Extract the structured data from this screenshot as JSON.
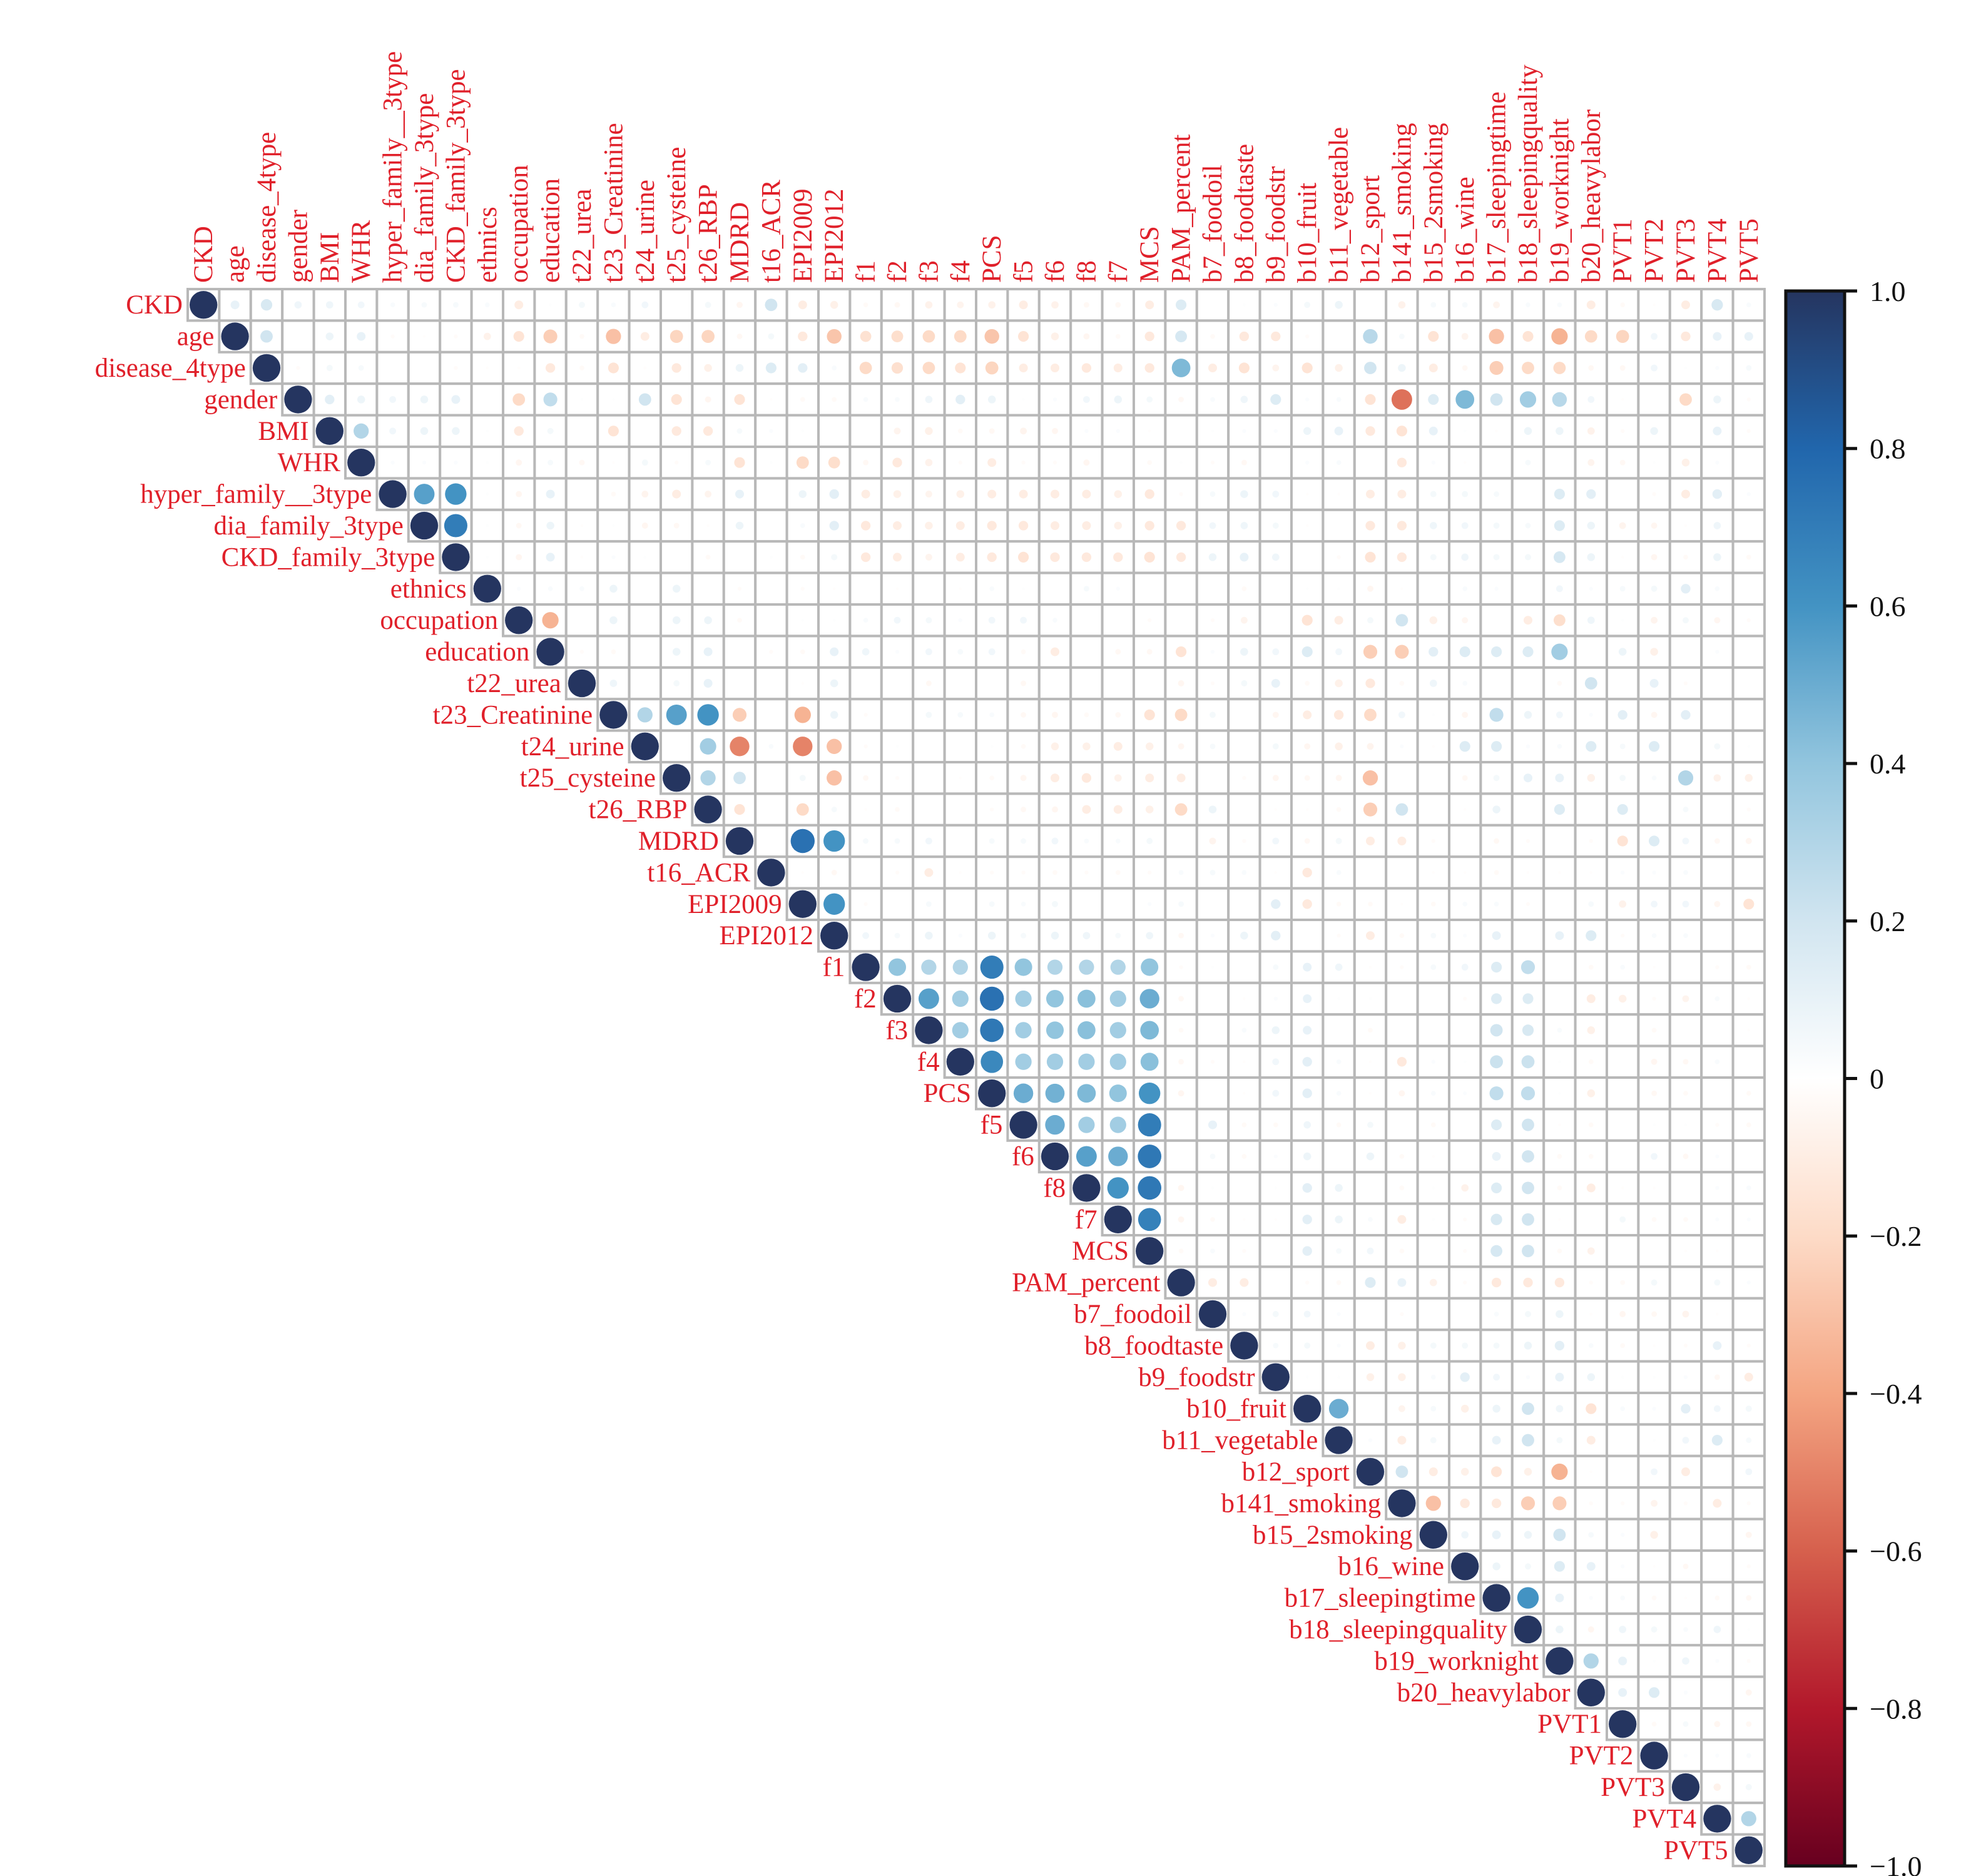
{
  "chart_data": {
    "type": "heatmap",
    "subtype": "correlation-circle-upper-triangle",
    "variables": [
      "CKD",
      "age",
      "disease_4type",
      "gender",
      "BMI",
      "WHR",
      "hyper_family__3type",
      "dia_family_3type",
      "CKD_family_3type",
      "ethnics",
      "occupation",
      "education",
      "t22_urea",
      "t23_Creatinine",
      "t24_urine",
      "t25_cysteine",
      "t26_RBP",
      "MDRD",
      "t16_ACR",
      "EPI2009",
      "EPI2012",
      "f1",
      "f2",
      "f3",
      "f4",
      "PCS",
      "f5",
      "f6",
      "f8",
      "f7",
      "MCS",
      "PAM_percent",
      "b7_foodoil",
      "b8_foodtaste",
      "b9_foodstr",
      "b10_fruit",
      "b11_vegetable",
      "b12_sport",
      "b141_smoking",
      "b15_2smoking",
      "b16_wine",
      "b17_sleepingtime",
      "b18_sleepingquality",
      "b19_worknight",
      "b20_heavylabor",
      "PVT1",
      "PVT2",
      "PVT3",
      "PVT4",
      "PVT5"
    ],
    "upper_triangle_note": "row i lists correlations with columns i+1..49; diagonal = 1",
    "upper_triangle": [
      [
        0.1,
        0.17,
        0.07,
        0.07,
        0.06,
        0.03,
        0.04,
        0.04,
        0.03,
        -0.1,
        0.01,
        0.05,
        0.03,
        0.06,
        0,
        0.05,
        -0.05,
        0.2,
        -0.1,
        -0.08,
        -0.03,
        -0.04,
        -0.07,
        -0.06,
        -0.07,
        -0.1,
        -0.07,
        -0.04,
        -0.04,
        -0.1,
        0.15,
        0,
        0.01,
        0.02,
        0.05,
        0.08,
        0,
        -0.07,
        0.04,
        0.04,
        -0.06,
        0.03,
        0.03,
        -0.1,
        -0.03,
        -0.01,
        -0.1,
        0.17,
        0.03
      ],
      [
        0.2,
        0,
        0.08,
        0.1,
        -0.02,
        -0.01,
        -0.02,
        -0.07,
        -0.15,
        -0.25,
        -0.03,
        -0.3,
        -0.1,
        -0.22,
        -0.22,
        -0.04,
        0.05,
        -0.12,
        -0.28,
        -0.16,
        -0.18,
        -0.2,
        -0.2,
        -0.28,
        -0.15,
        -0.08,
        -0.05,
        -0.03,
        -0.12,
        0.18,
        -0.03,
        -0.12,
        -0.12,
        -0.02,
        0,
        0.28,
        0.04,
        -0.15,
        -0.06,
        -0.3,
        -0.15,
        -0.35,
        -0.2,
        -0.22,
        0.06,
        -0.12,
        0.1,
        0.1
      ],
      [
        -0.02,
        0.05,
        0.04,
        0,
        0,
        -0.02,
        -0.01,
        -0.01,
        -0.12,
        -0.03,
        -0.15,
        -0.01,
        -0.12,
        -0.08,
        0.08,
        0.15,
        0.12,
        0.03,
        -0.2,
        -0.17,
        -0.2,
        -0.15,
        -0.22,
        -0.1,
        -0.1,
        -0.12,
        -0.1,
        -0.12,
        0.45,
        -0.1,
        -0.15,
        -0.06,
        -0.15,
        -0.08,
        0.2,
        0.08,
        -0.1,
        -0.04,
        -0.25,
        -0.2,
        -0.2,
        -0.04,
        -0.04,
        0.06,
        0.01,
        0.02,
        0.04
      ],
      [
        0.12,
        0.08,
        0.06,
        0.08,
        0.1,
        0,
        -0.2,
        0.25,
        0.01,
        0.01,
        0.2,
        -0.15,
        -0.05,
        -0.15,
        -0.01,
        -0.03,
        -0.03,
        0.03,
        0.03,
        0.07,
        0.12,
        0.08,
        0.01,
        0.02,
        0.06,
        0.08,
        0.05,
        -0.04,
        0.03,
        0.07,
        0.15,
        0.02,
        0.03,
        -0.15,
        -0.55,
        0.15,
        0.45,
        0.2,
        0.35,
        0.28,
        0.06,
        -0.01,
        0,
        -0.2,
        0.08,
        -0.02
      ],
      [
        0.3,
        0.06,
        0.08,
        0.08,
        0.01,
        -0.12,
        0.05,
        0,
        -0.15,
        0,
        -0.12,
        -0.12,
        0.04,
        0.02,
        0.01,
        0,
        0,
        -0.06,
        -0.08,
        -0.03,
        -0.04,
        -0.06,
        -0.05,
        0.02,
        0.02,
        -0.01,
        0,
        0.01,
        0.02,
        0.02,
        0.08,
        0.1,
        -0.12,
        -0.15,
        0.1,
        0.01,
        -0.01,
        0.08,
        0.08,
        -0.07,
        -0.02,
        0.08,
        0,
        0.1,
        -0.02
      ],
      [
        0.02,
        0.02,
        0.02,
        0.01,
        -0.05,
        0.04,
        -0.04,
        -0.01,
        0.05,
        -0.02,
        0.04,
        -0.15,
        0.01,
        -0.2,
        -0.18,
        -0.04,
        -0.12,
        -0.07,
        -0.02,
        -0.1,
        -0.02,
        -0.02,
        -0.05,
        0,
        -0.03,
        0.01,
        -0.02,
        -0.04,
        0,
        0.02,
        0.03,
        0,
        -0.12,
        0.02,
        -0.01,
        0,
        0.04,
        0,
        -0.06,
        -0.04,
        0.01,
        -0.08,
        0.02,
        0
      ],
      [
        0.55,
        0.6,
        0.01,
        -0.05,
        0.1,
        0,
        -0.03,
        -0.06,
        -0.1,
        -0.06,
        0.1,
        0,
        0.08,
        0.12,
        -0.1,
        -0.08,
        -0.06,
        -0.08,
        -0.1,
        -0.1,
        -0.1,
        -0.1,
        -0.08,
        -0.12,
        -0.02,
        0.04,
        0.08,
        0.06,
        -0.01,
        -0.01,
        -0.1,
        -0.1,
        0.05,
        0.05,
        0.04,
        0,
        0.15,
        0.12,
        0,
        -0.02,
        -0.1,
        0.12,
        0.02
      ],
      [
        0.7,
        0.01,
        -0.04,
        0.08,
        -0.01,
        0.01,
        -0.05,
        -0.04,
        -0.01,
        0.08,
        0,
        0.03,
        0.12,
        -0.12,
        -0.1,
        -0.08,
        -0.1,
        -0.12,
        -0.12,
        -0.1,
        -0.1,
        -0.08,
        -0.12,
        -0.12,
        0.06,
        0.07,
        0.05,
        -0.01,
        0,
        -0.12,
        -0.12,
        0.07,
        0.06,
        0.05,
        0.04,
        0.15,
        0.08,
        -0.06,
        -0.05,
        -0.01,
        0.07,
        0
      ],
      [
        0.01,
        -0.05,
        0.1,
        -0.01,
        0.02,
        0.01,
        0,
        -0.03,
        0,
        0.01,
        -0.03,
        0.05,
        -0.12,
        -0.1,
        -0.06,
        -0.1,
        -0.12,
        -0.15,
        -0.12,
        -0.12,
        -0.12,
        -0.15,
        -0.12,
        0.08,
        0.1,
        0.07,
        0,
        -0.02,
        -0.15,
        -0.12,
        0.05,
        0.07,
        0.05,
        0.05,
        0.18,
        0.08,
        -0.01,
        -0.05,
        -0.03,
        0.08,
        -0.03
      ],
      [
        0.02,
        0.03,
        0.03,
        0.08,
        0,
        0.08,
        0,
        -0.02,
        0,
        -0.02,
        -0.01,
        0,
        -0.01,
        0,
        -0.01,
        0.03,
        0.01,
        0,
        0.04,
        0.02,
        0,
        0,
        0,
        -0.03,
        0,
        0.01,
        0.01,
        -0.05,
        -0.01,
        0,
        0.03,
        0.02,
        0,
        0.06,
        0.02,
        0.04,
        0.05,
        0.12,
        0.03,
        0
      ],
      [
        -0.35,
        0,
        0.08,
        0,
        0.08,
        0.08,
        -0.03,
        0,
        0.01,
        0.01,
        0.03,
        0.06,
        0.05,
        0.02,
        0.06,
        0.06,
        0.03,
        0,
        0,
        -0.02,
        0,
        -0.02,
        -0.06,
        0,
        -0.15,
        -0.1,
        0.05,
        0.2,
        -0.08,
        -0.05,
        0,
        -0.1,
        -0.18,
        0.07,
        0.01,
        -0.06,
        0.05,
        -0.05,
        -0.02
      ],
      [
        -0.02,
        -0.03,
        0,
        0.08,
        0.1,
        0,
        -0.02,
        -0.03,
        0.1,
        0.07,
        0.02,
        0.06,
        0.04,
        0.06,
        -0.03,
        -0.1,
        0,
        -0.04,
        -0.04,
        -0.15,
        0.02,
        0.08,
        0.06,
        0.15,
        0.06,
        -0.25,
        -0.25,
        0.12,
        0.15,
        0.15,
        0.15,
        0.35,
        0,
        0.08,
        -0.08,
        0,
        0.02,
        0
      ],
      [
        0.07,
        0,
        0.05,
        0.1,
        0,
        0,
        -0.01,
        0.08,
        0,
        0,
        -0.04,
        0,
        0,
        -0.04,
        0,
        0,
        0,
        0,
        -0.05,
        -0.02,
        0.05,
        0.1,
        -0.03,
        -0.08,
        -0.12,
        -0.03,
        0.07,
        0.03,
        0,
        0,
        -0.03,
        0.2,
        0,
        0.1,
        -0.02,
        0,
        0
      ],
      [
        0.3,
        0.55,
        0.6,
        -0.25,
        0,
        -0.35,
        0.08,
        -0.02,
        0,
        0.05,
        0.04,
        0.03,
        -0.04,
        -0.05,
        -0.03,
        -0.04,
        -0.15,
        -0.2,
        0.05,
        0,
        -0.05,
        -0.1,
        -0.12,
        -0.2,
        0.06,
        0.01,
        -0.05,
        0.25,
        0.08,
        0.06,
        0.02,
        0.12,
        -0.05,
        0.12,
        0,
        0
      ],
      [
        0,
        0.35,
        -0.5,
        0.03,
        -0.5,
        -0.3,
        -0.02,
        0.01,
        0,
        0,
        0.01,
        -0.03,
        -0.08,
        -0.08,
        -0.1,
        -0.08,
        -0.05,
        0.04,
        0,
        0.05,
        -0.05,
        -0.08,
        -0.06,
        0.02,
        -0.01,
        0.15,
        0.15,
        0.02,
        0.03,
        0.15,
        0.04,
        0.15,
        0,
        0.05,
        0.01
      ],
      [
        0.3,
        0.2,
        0,
        0.05,
        -0.3,
        -0.04,
        -0.02,
        0,
        -0.01,
        -0.03,
        -0.05,
        -0.1,
        -0.12,
        -0.07,
        -0.1,
        -0.1,
        0,
        -0.02,
        -0.05,
        -0.04,
        -0.05,
        -0.3,
        0,
        0,
        -0.04,
        0.05,
        0.1,
        0.1,
        -0.08,
        0.05,
        0.03,
        0.3,
        -0.07,
        -0.08
      ],
      [
        -0.15,
        0,
        -0.2,
        0.04,
        -0.01,
        -0.03,
        0,
        0,
        -0.02,
        -0.04,
        -0.05,
        -0.1,
        -0.1,
        -0.08,
        -0.2,
        0.08,
        0,
        -0.01,
        -0.01,
        -0.03,
        -0.25,
        0.2,
        0,
        -0.01,
        0.08,
        0,
        0.15,
        0,
        0.15,
        0,
        0.04,
        0,
        -0.02
      ],
      [
        0,
        0.75,
        0.6,
        0.04,
        0.04,
        0.06,
        0,
        0.04,
        0.04,
        0.06,
        0.03,
        0.03,
        0.05,
        0,
        -0.06,
        -0.02,
        0.06,
        -0.04,
        0.05,
        -0.1,
        -0.1,
        -0.02,
        0,
        -0.04,
        -0.02,
        0,
        -0.02,
        -0.15,
        0.15,
        0.06,
        -0.04,
        -0.05
      ],
      [
        -0.01,
        -0.04,
        0,
        -0.02,
        -0.1,
        -0.01,
        -0.02,
        -0.02,
        -0.03,
        -0.02,
        -0.03,
        -0.02,
        0.03,
        0.04,
        0.03,
        -0.01,
        -0.12,
        0.03,
        0,
        0,
        -0.01,
        -0.01,
        -0.03,
        -0.01,
        -0.01,
        -0.01,
        0.02,
        0.02,
        0.03,
        0,
        0
      ],
      [
        0.6,
        -0.02,
        0,
        0.04,
        0,
        0.04,
        0.03,
        0.05,
        0,
        0,
        0.02,
        0.04,
        0,
        0,
        0.12,
        -0.12,
        -0.03,
        -0.03,
        -0.01,
        -0.03,
        0.03,
        0.03,
        -0.02,
        0,
        0.04,
        -0.07,
        0.06,
        0.06,
        -0.05,
        -0.15
      ],
      [
        0.06,
        0.04,
        0.08,
        0.02,
        0.08,
        0.04,
        0.08,
        0.07,
        0.04,
        0.07,
        -0.04,
        0.02,
        0.08,
        0.12,
        0,
        -0.02,
        -0.1,
        -0.03,
        0.04,
        0.02,
        0.1,
        0,
        0.1,
        0.15,
        -0.02,
        0.03,
        0.03,
        0,
        0
      ],
      [
        0.4,
        0.3,
        0.3,
        0.7,
        0.4,
        0.3,
        0.3,
        0.3,
        0.4,
        -0.02,
        0.01,
        0,
        0.04,
        0.1,
        0.07,
        -0.01,
        -0.02,
        0.04,
        0.06,
        0.15,
        0.25,
        0,
        -0.03,
        0.03,
        -0.01,
        0,
        -0.02,
        -0.03
      ],
      [
        0.55,
        0.35,
        0.75,
        0.35,
        0.4,
        0.42,
        0.35,
        0.5,
        -0.04,
        0,
        -0.01,
        0.02,
        0.1,
        0.01,
        0.01,
        0,
        0,
        -0.02,
        0.15,
        0.15,
        0,
        -0.1,
        -0.08,
        -0.02,
        -0.06,
        0.03,
        -0.01
      ],
      [
        0.35,
        0.72,
        0.35,
        0.4,
        0.42,
        0.35,
        0.45,
        -0.03,
        0,
        0.03,
        0.08,
        0.1,
        0,
        -0.03,
        0,
        0,
        0,
        0.2,
        0.17,
        0.03,
        -0.08,
        0,
        -0.03,
        0,
        0,
        -0.01
      ],
      [
        0.65,
        0.35,
        0.35,
        0.35,
        0.35,
        0.42,
        -0.04,
        -0.02,
        -0.01,
        0.06,
        0.12,
        0.03,
        -0.01,
        -0.12,
        0.02,
        0.01,
        0.22,
        0.22,
        0.01,
        -0.03,
        0,
        -0.05,
        -0.04,
        0.03,
        0
      ],
      [
        0.5,
        0.48,
        0.45,
        0.4,
        0.6,
        -0.05,
        0,
        -0.01,
        0.06,
        0.12,
        0.03,
        -0.01,
        -0.05,
        0.03,
        0.02,
        0.25,
        0.25,
        0.01,
        -0.08,
        0,
        -0.04,
        -0.03,
        0,
        -0.03
      ],
      [
        0.5,
        0.35,
        0.35,
        0.7,
        0,
        0.1,
        -0.03,
        -0.03,
        0.07,
        -0.03,
        0.05,
        0,
        -0.03,
        0,
        0.15,
        0.2,
        -0.01,
        -0.03,
        0,
        0.01,
        0.01,
        -0.02,
        -0.03
      ],
      [
        0.55,
        0.5,
        0.72,
        0,
        0.04,
        -0.03,
        0.02,
        0.08,
        0,
        0.08,
        -0.03,
        -0.01,
        0,
        0.1,
        0.2,
        -0.03,
        -0.03,
        0,
        0.06,
        -0.04,
        0.02,
        0
      ],
      [
        0.6,
        0.72,
        -0.05,
        0.01,
        0,
        0.01,
        0.12,
        0.08,
        0,
        -0.03,
        0.01,
        -0.07,
        0.15,
        0.2,
        -0.03,
        -0.1,
        -0.01,
        -0.01,
        0,
        0.02,
        0.03
      ],
      [
        0.68,
        -0.05,
        -0.03,
        -0.01,
        -0.01,
        0.12,
        0.08,
        0.03,
        -0.1,
        0.01,
        -0.02,
        0.17,
        0.2,
        -0.01,
        0,
        0.05,
        -0.03,
        -0.03,
        0.02,
        0.02
      ],
      [
        -0.03,
        0.03,
        -0.02,
        0,
        0.12,
        0.04,
        0.06,
        -0.03,
        0,
        -0.02,
        0.18,
        0.2,
        -0.03,
        -0.07,
        0,
        0,
        -0.01,
        -0.01,
        0
      ],
      [
        -0.1,
        -0.1,
        0,
        -0.02,
        -0.03,
        0.15,
        0.1,
        -0.07,
        -0.02,
        -0.12,
        -0.12,
        -0.12,
        -0.02,
        -0.03,
        0.05,
        0,
        0.05,
        0.02
      ],
      [
        0.02,
        0.05,
        0.06,
        0.02,
        0,
        -0.02,
        0,
        0,
        0.03,
        0.05,
        0.08,
        -0.01,
        -0.05,
        -0.04,
        -0.06,
        -0.01,
        0
      ],
      [
        0.04,
        0.05,
        0.02,
        -0.1,
        -0.08,
        0.05,
        0.05,
        0.05,
        0.08,
        0.12,
        0.03,
        -0.03,
        -0.01,
        -0.02,
        0.1,
        -0.02
      ],
      [
        0.01,
        0.01,
        -0.08,
        -0.08,
        0.03,
        0.12,
        0.06,
        0.02,
        0.1,
        0.08,
        0.01,
        0.01,
        0.02,
        -0.04,
        -0.1
      ],
      [
        0.5,
        0,
        -0.06,
        0.04,
        -0.08,
        0.08,
        0.2,
        0.07,
        -0.15,
        0.03,
        0.02,
        0.12,
        0.06,
        0.05
      ],
      [
        0.02,
        -0.1,
        0.05,
        0,
        0.1,
        0.2,
        0.05,
        -0.1,
        0,
        0.01,
        0.06,
        0.15,
        0.04
      ],
      [
        0.2,
        -0.1,
        -0.08,
        -0.15,
        -0.08,
        -0.35,
        -0.01,
        0,
        0.06,
        -0.1,
        0,
        0.06
      ],
      [
        -0.3,
        -0.12,
        -0.12,
        -0.25,
        -0.25,
        -0.02,
        -0.02,
        -0.06,
        -0.02,
        -0.1,
        -0.02
      ],
      [
        0.07,
        0.1,
        0.08,
        0.2,
        0.04,
        0.02,
        -0.08,
        0,
        0,
        -0.05
      ],
      [
        0.08,
        0.05,
        0.15,
        0.1,
        0.02,
        -0.01,
        -0.04,
        0,
        -0.02
      ],
      [
        0.6,
        0.1,
        0.02,
        0.03,
        -0.03,
        -0.01,
        -0.03,
        -0.04
      ],
      [
        0.08,
        -0.05,
        0.07,
        0.05,
        0.03,
        0.07,
        0.01
      ],
      [
        0.3,
        0.1,
        0.01,
        0.07,
        0.02,
        -0.02
      ],
      [
        0.1,
        0.15,
        0.02,
        0,
        -0.05
      ],
      [
        -0.03,
        0.04,
        -0.05,
        -0.04
      ],
      [
        0.02,
        0.02,
        0.03
      ],
      [
        -0.07,
        0.05
      ],
      [
        0.3
      ],
      []
    ],
    "colorbar": {
      "range": [
        -1,
        1
      ],
      "ticks": [
        1.0,
        0.8,
        0.6,
        0.4,
        0.2,
        0,
        -0.2,
        -0.4,
        -0.6,
        -0.8,
        -1.0
      ],
      "tick_labels": [
        "1.0",
        "0.8",
        "0.6",
        "0.4",
        "0.2",
        "0",
        "−0.2",
        "−0.4",
        "−0.6",
        "−0.8",
        "−1.0"
      ],
      "placement": "right"
    },
    "palette": [
      "#67001F",
      "#B2182B",
      "#D6604D",
      "#F4A582",
      "#FDDBC7",
      "#FFFFFF",
      "#D1E5F0",
      "#92C5DE",
      "#4393C3",
      "#2166AC",
      "#253560"
    ],
    "label_color": "#e0202a",
    "grid_color": "#b8b8b8"
  }
}
